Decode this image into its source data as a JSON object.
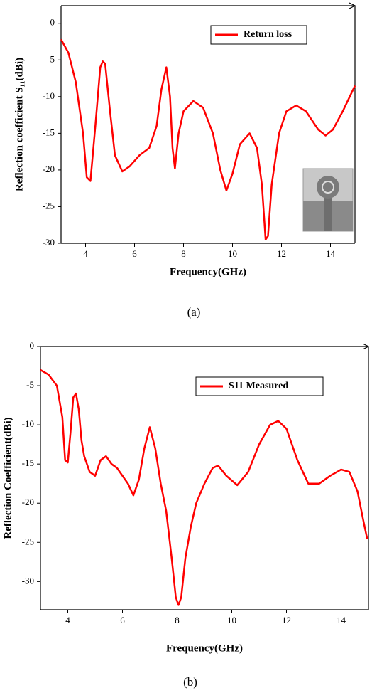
{
  "chart_data": [
    {
      "type": "line",
      "x_label": "Frequency(GHz)",
      "y_label": "Reflection coefficient S₁₁(dBi)",
      "caption": "(a)",
      "xlim": [
        3,
        15
      ],
      "ylim": [
        -30,
        2.4
      ],
      "xticks": [
        4,
        6,
        8,
        10,
        12,
        14
      ],
      "yticks": [
        -30,
        -25,
        -20,
        -15,
        -10,
        -5,
        0
      ],
      "legend": "upper right",
      "x": [
        3,
        3.3,
        3.6,
        3.9,
        4.05,
        4.2,
        4.4,
        4.6,
        4.7,
        4.8,
        5.0,
        5.2,
        5.5,
        5.8,
        6.2,
        6.6,
        6.9,
        7.1,
        7.3,
        7.45,
        7.55,
        7.65,
        7.8,
        8.0,
        8.4,
        8.8,
        9.2,
        9.5,
        9.75,
        10.0,
        10.3,
        10.7,
        11.0,
        11.2,
        11.35,
        11.45,
        11.6,
        11.9,
        12.2,
        12.6,
        13.0,
        13.5,
        13.8,
        14.1,
        14.5,
        15
      ],
      "series": [
        {
          "name": "Return loss",
          "color": "#ff0000",
          "values": [
            -2.2,
            -4,
            -8,
            -15,
            -21,
            -21.5,
            -14,
            -6,
            -5.2,
            -5.5,
            -12,
            -18,
            -20.2,
            -19.5,
            -18,
            -17,
            -14,
            -9,
            -6,
            -10,
            -17,
            -19.8,
            -15,
            -12,
            -10.6,
            -11.5,
            -15,
            -20,
            -22.8,
            -20.5,
            -16.5,
            -15,
            -17,
            -22,
            -29.5,
            -29,
            -22,
            -15,
            -12,
            -11.2,
            -12,
            -14.5,
            -15.3,
            -14.5,
            -12,
            -8.5
          ]
        }
      ]
    },
    {
      "type": "line",
      "x_label": "Frequency(GHz)",
      "y_label": "Reflection Coefficient(dBi)",
      "caption": "(b)",
      "xlim": [
        3,
        15
      ],
      "ylim": [
        -33.6,
        0
      ],
      "xticks": [
        4,
        6,
        8,
        10,
        12,
        14
      ],
      "yticks": [
        -30,
        -25,
        -20,
        -15,
        -10,
        -5,
        0
      ],
      "legend": "upper right",
      "x": [
        3,
        3.3,
        3.6,
        3.8,
        3.9,
        4.0,
        4.1,
        4.2,
        4.3,
        4.4,
        4.5,
        4.6,
        4.8,
        5.0,
        5.2,
        5.4,
        5.6,
        5.8,
        6.0,
        6.2,
        6.4,
        6.6,
        6.8,
        7.0,
        7.2,
        7.4,
        7.6,
        7.8,
        7.95,
        8.05,
        8.15,
        8.3,
        8.5,
        8.7,
        9.0,
        9.3,
        9.5,
        9.8,
        10.2,
        10.6,
        11.0,
        11.4,
        11.7,
        12.0,
        12.4,
        12.8,
        13.2,
        13.6,
        14.0,
        14.3,
        14.6,
        14.8,
        14.95,
        15
      ],
      "series": [
        {
          "name": "S11 Measured",
          "color": "#ff0000",
          "values": [
            -3,
            -3.6,
            -5,
            -9,
            -14.5,
            -14.8,
            -11,
            -6.5,
            -6,
            -8,
            -12,
            -14,
            -16,
            -16.5,
            -14.5,
            -14,
            -15,
            -15.5,
            -16.5,
            -17.5,
            -19,
            -17,
            -13,
            -10.3,
            -13,
            -17.5,
            -21,
            -27,
            -32,
            -33,
            -32,
            -27,
            -23,
            -20,
            -17.5,
            -15.5,
            -15.2,
            -16.5,
            -17.7,
            -16,
            -12.5,
            -10,
            -9.5,
            -10.5,
            -14.5,
            -17.5,
            -17.5,
            -16.5,
            -15.7,
            -16,
            -18.5,
            -22,
            -24.5,
            -24.5
          ]
        }
      ]
    }
  ]
}
